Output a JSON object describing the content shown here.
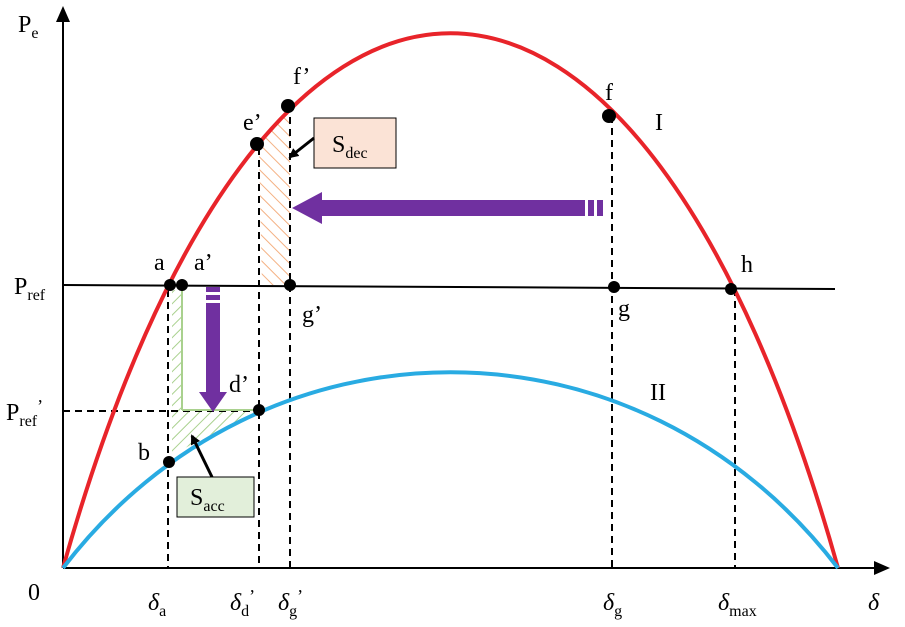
{
  "axis_labels": [
    {
      "base": "P",
      "sub": "e"
    },
    {
      "base": "δ"
    },
    {
      "base": "0"
    }
  ],
  "y_levels": [
    {
      "base": "P",
      "sub": "ref"
    },
    {
      "base": "P",
      "sub": "ref",
      "prime": "’"
    }
  ],
  "x_marks": [
    {
      "base": "δ",
      "sub": "a"
    },
    {
      "base": "δ",
      "sub": "d",
      "prime": "’"
    },
    {
      "base": "δ",
      "sub": "g",
      "prime": "’"
    },
    {
      "base": "δ",
      "sub": "g"
    },
    {
      "base": "δ",
      "sub": "max"
    }
  ],
  "points": [
    "a",
    "a’",
    "b",
    "d’",
    "e’",
    "f’",
    "f",
    "g",
    "g’",
    "h"
  ],
  "curves": [
    "I",
    "II"
  ],
  "areas": [
    {
      "base": "S",
      "sub": "dec"
    },
    {
      "base": "S",
      "sub": "acc"
    }
  ]
}
